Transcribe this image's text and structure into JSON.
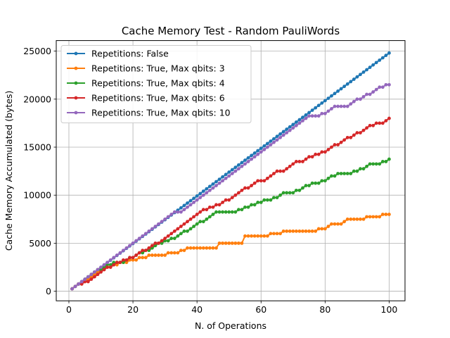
{
  "chart_data": {
    "type": "line",
    "title": "Cache Memory Test - Random PauliWords",
    "xlabel": "N. of Operations",
    "ylabel": "Cache Memory Accumulated (bytes)",
    "xlim": [
      -3.95,
      104.95
    ],
    "ylim": [
      -1000,
      26100
    ],
    "xticks": [
      0,
      20,
      40,
      60,
      80,
      100
    ],
    "yticks": [
      0,
      5000,
      10000,
      15000,
      20000,
      25000
    ],
    "grid": true,
    "legend_position": "top-left",
    "series": [
      {
        "name": "Repetitions: False",
        "color": "#1f77b4",
        "y": [
          248,
          496,
          744,
          992,
          1240,
          1488,
          1736,
          1984,
          2232,
          2480,
          2728,
          2976,
          3224,
          3472,
          3720,
          3968,
          4216,
          4464,
          4712,
          4960,
          5208,
          5456,
          5704,
          5952,
          6200,
          6448,
          6696,
          6944,
          7192,
          7440,
          7688,
          7936,
          8184,
          8432,
          8680,
          8928,
          9176,
          9424,
          9672,
          9920,
          10168,
          10416,
          10664,
          10912,
          11160,
          11408,
          11656,
          11904,
          12152,
          12400,
          12648,
          12896,
          13144,
          13392,
          13640,
          13888,
          14136,
          14384,
          14632,
          14880,
          15128,
          15376,
          15624,
          15872,
          16120,
          16368,
          16616,
          16864,
          17112,
          17360,
          17608,
          17856,
          18104,
          18352,
          18600,
          18848,
          19096,
          19344,
          19592,
          19840,
          20088,
          20336,
          20584,
          20832,
          21080,
          21328,
          21576,
          21824,
          22072,
          22320,
          22568,
          22816,
          23064,
          23312,
          23560,
          23808,
          24056,
          24304,
          24552,
          24800
        ]
      },
      {
        "name": "Repetitions: True, Max qbits: 3",
        "color": "#ff7f0e",
        "y": [
          250,
          500,
          750,
          750,
          1000,
          1250,
          1500,
          1750,
          2000,
          2250,
          2250,
          2500,
          2500,
          2750,
          2750,
          3000,
          3000,
          3000,
          3250,
          3250,
          3250,
          3500,
          3500,
          3500,
          3750,
          3750,
          3750,
          3750,
          3750,
          3750,
          4000,
          4000,
          4000,
          4000,
          4250,
          4250,
          4500,
          4500,
          4500,
          4500,
          4500,
          4500,
          4500,
          4500,
          4500,
          4500,
          5000,
          5000,
          5000,
          5000,
          5000,
          5000,
          5000,
          5000,
          5750,
          5750,
          5750,
          5750,
          5750,
          5750,
          5750,
          5750,
          6000,
          6000,
          6000,
          6000,
          6250,
          6250,
          6250,
          6250,
          6250,
          6250,
          6250,
          6250,
          6250,
          6250,
          6250,
          6500,
          6500,
          6500,
          6750,
          7000,
          7000,
          7000,
          7000,
          7250,
          7500,
          7500,
          7500,
          7500,
          7500,
          7500,
          7750,
          7750,
          7750,
          7750,
          7750,
          8000,
          8000,
          8000
        ]
      },
      {
        "name": "Repetitions: True, Max qbits: 4",
        "color": "#2ca02c",
        "y": [
          250,
          500,
          750,
          1000,
          1250,
          1500,
          1750,
          2000,
          2250,
          2250,
          2500,
          2750,
          2750,
          3000,
          3000,
          3000,
          3000,
          3250,
          3500,
          3500,
          3750,
          4000,
          4000,
          4250,
          4250,
          4500,
          4750,
          5000,
          5000,
          5250,
          5250,
          5500,
          5500,
          5750,
          6000,
          6250,
          6250,
          6500,
          6750,
          7000,
          7250,
          7250,
          7500,
          7750,
          8000,
          8250,
          8250,
          8250,
          8250,
          8250,
          8250,
          8250,
          8500,
          8500,
          8750,
          8750,
          9000,
          9000,
          9250,
          9250,
          9500,
          9500,
          9500,
          9750,
          9750,
          10000,
          10250,
          10250,
          10250,
          10250,
          10500,
          10500,
          10750,
          11000,
          11000,
          11250,
          11250,
          11250,
          11500,
          11500,
          11750,
          12000,
          12000,
          12250,
          12250,
          12250,
          12250,
          12250,
          12500,
          12500,
          12750,
          12750,
          13000,
          13250,
          13250,
          13250,
          13250,
          13500,
          13500,
          13750
        ]
      },
      {
        "name": "Repetitions: True, Max qbits: 6",
        "color": "#d62728",
        "y": [
          250,
          500,
          750,
          750,
          1000,
          1000,
          1250,
          1500,
          1750,
          2000,
          2250,
          2500,
          2500,
          2750,
          3000,
          3000,
          3250,
          3250,
          3500,
          3500,
          3750,
          4000,
          4250,
          4250,
          4500,
          4750,
          5000,
          5000,
          5250,
          5500,
          5750,
          6000,
          6250,
          6500,
          6750,
          7000,
          7250,
          7500,
          7750,
          8000,
          8250,
          8500,
          8500,
          8750,
          8750,
          9000,
          9000,
          9250,
          9500,
          9500,
          9750,
          10000,
          10250,
          10500,
          10750,
          10750,
          11000,
          11250,
          11500,
          11500,
          11500,
          11750,
          12000,
          12250,
          12500,
          12500,
          12500,
          12750,
          13000,
          13250,
          13500,
          13500,
          13500,
          13750,
          14000,
          14000,
          14250,
          14250,
          14500,
          14500,
          14750,
          15000,
          15250,
          15250,
          15500,
          15750,
          16000,
          16000,
          16250,
          16500,
          16500,
          16750,
          17000,
          17250,
          17250,
          17500,
          17500,
          17500,
          17750,
          18000
        ]
      },
      {
        "name": "Repetitions: True, Max qbits: 10",
        "color": "#9467bd",
        "y": [
          250,
          500,
          750,
          1000,
          1250,
          1500,
          1750,
          2000,
          2250,
          2500,
          2750,
          3000,
          3250,
          3500,
          3750,
          4000,
          4250,
          4500,
          4750,
          5000,
          5250,
          5500,
          5750,
          6000,
          6250,
          6500,
          6750,
          7000,
          7250,
          7500,
          7750,
          8000,
          8250,
          8250,
          8250,
          8500,
          8750,
          9000,
          9250,
          9500,
          9750,
          10000,
          10250,
          10500,
          10750,
          11000,
          11250,
          11500,
          11750,
          12000,
          12250,
          12500,
          12750,
          13000,
          13250,
          13500,
          13750,
          14000,
          14250,
          14500,
          14750,
          15000,
          15250,
          15500,
          15750,
          16000,
          16250,
          16500,
          16750,
          17000,
          17250,
          17500,
          17750,
          18000,
          18250,
          18250,
          18250,
          18250,
          18500,
          18500,
          18750,
          19000,
          19250,
          19250,
          19250,
          19250,
          19250,
          19500,
          19750,
          20000,
          20000,
          20250,
          20500,
          20500,
          20750,
          21000,
          21250,
          21250,
          21500,
          21500
        ]
      }
    ]
  }
}
